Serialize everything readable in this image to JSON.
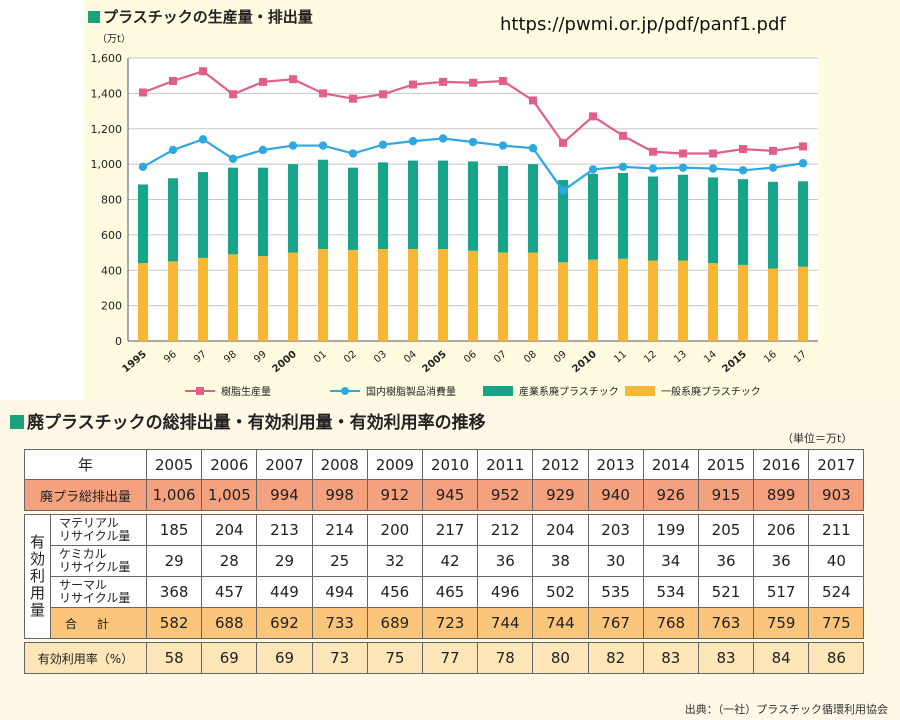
{
  "url": "https://pwmi.or.jp/pdf/panf1.pdf",
  "colors": {
    "resin": "#e0608a",
    "consumption": "#2ea8e0",
    "industrial": "#17a58a",
    "general": "#f6b834"
  },
  "chart_title": "プラスチックの生産量・排出量",
  "chart_data": {
    "type": "bar",
    "title": "プラスチックの生産量・排出量",
    "ylabel": "（万t）",
    "ylim": [
      0,
      1600
    ],
    "yticks": [
      "0",
      "200",
      "400",
      "600",
      "800",
      "1,000",
      "1,200",
      "1,400",
      "1,600"
    ],
    "categories": [
      "1995",
      "96",
      "97",
      "98",
      "99",
      "2000",
      "01",
      "02",
      "03",
      "04",
      "2005",
      "06",
      "07",
      "08",
      "09",
      "2010",
      "11",
      "12",
      "13",
      "14",
      "2015",
      "16",
      "17"
    ],
    "stacked": true,
    "series": [
      {
        "name": "一般系廃プラスチック",
        "kind": "bar",
        "values": [
          440,
          450,
          470,
          490,
          480,
          500,
          520,
          515,
          520,
          520,
          520,
          510,
          500,
          500,
          445,
          460,
          465,
          455,
          455,
          440,
          430,
          410,
          420
        ]
      },
      {
        "name": "産業系廃プラスチック",
        "kind": "bar",
        "values": [
          445,
          470,
          485,
          490,
          500,
          500,
          505,
          465,
          490,
          500,
          500,
          505,
          490,
          500,
          465,
          485,
          485,
          475,
          485,
          485,
          485,
          490,
          483
        ]
      },
      {
        "name": "樹脂生産量",
        "kind": "line",
        "values": [
          1405,
          1470,
          1525,
          1395,
          1465,
          1480,
          1400,
          1370,
          1395,
          1450,
          1465,
          1460,
          1470,
          1360,
          1120,
          1270,
          1160,
          1070,
          1060,
          1060,
          1085,
          1075,
          1100
        ]
      },
      {
        "name": "国内樹脂製品消費量",
        "kind": "line",
        "values": [
          985,
          1080,
          1140,
          1030,
          1080,
          1105,
          1105,
          1060,
          1110,
          1130,
          1145,
          1125,
          1105,
          1090,
          850,
          970,
          985,
          975,
          980,
          975,
          965,
          980,
          1005
        ]
      }
    ],
    "grid": true,
    "legend": "bottom"
  },
  "table": {
    "title": "廃プラスチックの総排出量・有効利用量・有効利用率の推移",
    "unit": "（単位＝万t）",
    "year_header": "年",
    "years": [
      "2005",
      "2006",
      "2007",
      "2008",
      "2009",
      "2010",
      "2011",
      "2012",
      "2013",
      "2014",
      "2015",
      "2016",
      "2017"
    ],
    "total_label": "廃プラ総排出量",
    "total": [
      "1,006",
      "1,005",
      "994",
      "998",
      "912",
      "945",
      "952",
      "929",
      "940",
      "926",
      "915",
      "899",
      "903"
    ],
    "group_label": "有効利用量",
    "material_label": [
      "マテリアル",
      "リサイクル量"
    ],
    "material": [
      "185",
      "204",
      "213",
      "214",
      "200",
      "217",
      "212",
      "204",
      "203",
      "199",
      "205",
      "206",
      "211"
    ],
    "chemical_label": [
      "ケミカル",
      "リサイクル量"
    ],
    "chemical": [
      "29",
      "28",
      "29",
      "25",
      "32",
      "42",
      "36",
      "38",
      "30",
      "34",
      "36",
      "36",
      "40"
    ],
    "thermal_label": [
      "サーマル",
      "リサイクル量"
    ],
    "thermal": [
      "368",
      "457",
      "449",
      "494",
      "456",
      "465",
      "496",
      "502",
      "535",
      "534",
      "521",
      "517",
      "524"
    ],
    "sum_label": "合計",
    "sum": [
      "582",
      "688",
      "692",
      "733",
      "689",
      "723",
      "744",
      "744",
      "767",
      "768",
      "763",
      "759",
      "775"
    ],
    "rate_label": "有効利用率（%）",
    "rate": [
      "58",
      "69",
      "69",
      "73",
      "75",
      "77",
      "78",
      "80",
      "82",
      "83",
      "83",
      "84",
      "86"
    ]
  },
  "source": "出典：（一社）プラスチック循環利用協会"
}
